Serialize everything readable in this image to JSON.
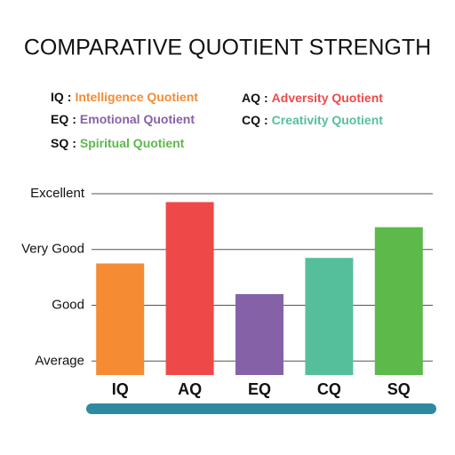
{
  "chart_data": {
    "type": "bar",
    "title": "COMPARATIVE QUOTIENT STRENGTH",
    "legend": [
      {
        "abbr": "IQ",
        "separator": ":",
        "name": "Intelligence Quotient",
        "color": "#f58b33"
      },
      {
        "abbr": "EQ",
        "separator": ":",
        "name": "Emotional Quotient",
        "color": "#8562a8"
      },
      {
        "abbr": "SQ",
        "separator": ":",
        "name": "Spiritual Quotient",
        "color": "#5cb94a"
      },
      {
        "abbr": "AQ",
        "separator": ":",
        "name": "Adversity Quotient",
        "color": "#ef4848"
      },
      {
        "abbr": "CQ",
        "separator": ":",
        "name": "Creativity Quotient",
        "color": "#55bf9c"
      }
    ],
    "categories": [
      "IQ",
      "AQ",
      "EQ",
      "CQ",
      "SQ"
    ],
    "values": [
      2.75,
      3.85,
      2.2,
      2.85,
      3.4
    ],
    "colors": [
      "#f58b33",
      "#ef4848",
      "#8562a8",
      "#55bf9c",
      "#5cb94a"
    ],
    "ylim": [
      0.75,
      4
    ],
    "yticks": [
      {
        "value": 1,
        "label": "Average"
      },
      {
        "value": 2,
        "label": "Good"
      },
      {
        "value": 3,
        "label": "Very Good"
      },
      {
        "value": 4,
        "label": "Excellent"
      }
    ],
    "grid": true
  }
}
